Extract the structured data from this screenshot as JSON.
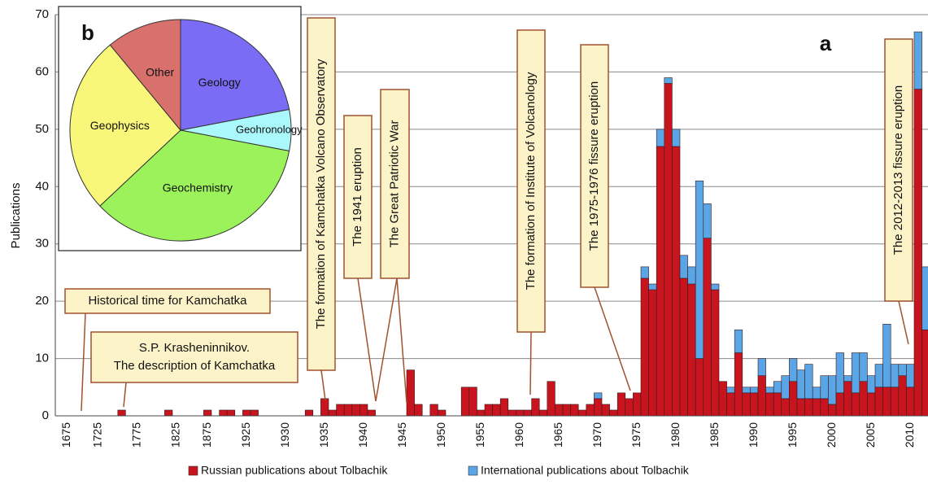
{
  "chart_data": [
    {
      "type": "bar",
      "stacked": true,
      "y_label": "Publications",
      "panel_label": "a",
      "grid": true,
      "legend": "bottom",
      "ylim": [
        0,
        70
      ],
      "yticks": [
        0,
        10,
        20,
        30,
        40,
        50,
        60,
        70
      ],
      "categories": [
        null,
        "1675",
        null,
        null,
        null,
        "1725",
        null,
        null,
        null,
        null,
        "1775",
        null,
        null,
        null,
        null,
        "1825",
        null,
        null,
        null,
        "1875",
        null,
        null,
        null,
        null,
        "1925",
        null,
        null,
        null,
        null,
        "1930",
        null,
        null,
        null,
        null,
        "1935",
        null,
        null,
        null,
        null,
        "1940",
        null,
        null,
        null,
        null,
        "1945",
        null,
        null,
        null,
        null,
        "1950",
        null,
        null,
        null,
        null,
        "1955",
        null,
        null,
        null,
        null,
        "1960",
        null,
        null,
        null,
        null,
        "1965",
        null,
        null,
        null,
        null,
        "1970",
        null,
        null,
        null,
        null,
        "1975",
        null,
        null,
        null,
        null,
        "1980",
        null,
        null,
        null,
        null,
        "1985",
        null,
        null,
        null,
        null,
        "1990",
        null,
        null,
        null,
        null,
        "1995",
        null,
        null,
        null,
        null,
        "2000",
        null,
        null,
        null,
        null,
        "2005",
        null,
        null,
        null,
        null,
        "2010",
        null,
        null
      ],
      "series": [
        {
          "name": "Russian publications about Tolbachik",
          "color": "#c8141e",
          "values": [
            0,
            0,
            0,
            0,
            0,
            0,
            0,
            0,
            1,
            0,
            0,
            0,
            0,
            0,
            1,
            0,
            0,
            0,
            0,
            1,
            0,
            1,
            1,
            0,
            1,
            1,
            0,
            0,
            0,
            0,
            0,
            0,
            1,
            0,
            3,
            1,
            2,
            2,
            2,
            2,
            1,
            0,
            0,
            0,
            0,
            8,
            2,
            0,
            2,
            1,
            0,
            0,
            5,
            5,
            1,
            2,
            2,
            3,
            1,
            1,
            1,
            3,
            1,
            6,
            2,
            2,
            2,
            1,
            2,
            3,
            2,
            1,
            4,
            3,
            4,
            24,
            22,
            47,
            58,
            47,
            24,
            23,
            10,
            31,
            22,
            6,
            4,
            11,
            4,
            4,
            7,
            4,
            4,
            3,
            6,
            3,
            3,
            3,
            3,
            2,
            4,
            6,
            4,
            6,
            4,
            5,
            5,
            5,
            7,
            5,
            57,
            15
          ]
        },
        {
          "name": "International publications about Tolbachik",
          "color": "#5aa5e6",
          "values": [
            0,
            0,
            0,
            0,
            0,
            0,
            0,
            0,
            0,
            0,
            0,
            0,
            0,
            0,
            0,
            0,
            0,
            0,
            0,
            0,
            0,
            0,
            0,
            0,
            0,
            0,
            0,
            0,
            0,
            0,
            0,
            0,
            0,
            0,
            0,
            0,
            0,
            0,
            0,
            0,
            0,
            0,
            0,
            0,
            0,
            0,
            0,
            0,
            0,
            0,
            0,
            0,
            0,
            0,
            0,
            0,
            0,
            0,
            0,
            0,
            0,
            0,
            0,
            0,
            0,
            0,
            0,
            0,
            0,
            1,
            0,
            0,
            0,
            0,
            0,
            2,
            1,
            3,
            1,
            3,
            4,
            3,
            31,
            6,
            1,
            0,
            1,
            4,
            1,
            1,
            3,
            1,
            2,
            4,
            4,
            5,
            6,
            2,
            4,
            5,
            7,
            1,
            7,
            5,
            3,
            4,
            11,
            4,
            2,
            4,
            10,
            11
          ]
        }
      ],
      "annotations": [
        [
          "Historical time for Kamchatka"
        ],
        [
          "S.P. Krasheninnikov.",
          "The description of Kamchatka"
        ],
        [
          "The formation of Kamchatka Volcano Observatory"
        ],
        [
          "The 1941 eruption"
        ],
        [
          "The Great Patriotic War"
        ],
        [
          "The formation of Institute of Volcanology"
        ],
        [
          "The 1975-1976 fissure  eruption"
        ],
        [
          "The 2012-2013 fissure eruption"
        ]
      ]
    },
    {
      "type": "pie",
      "panel_label": "b",
      "labels": [
        "Geology",
        "Geohronology",
        "Geochemistry",
        "Geophysics",
        "Other"
      ],
      "values": [
        22,
        6,
        35,
        26,
        11
      ],
      "colors": [
        "#7b6cf6",
        "#aaf8fb",
        "#9bf25a",
        "#f8f77a",
        "#d8706c"
      ]
    }
  ]
}
